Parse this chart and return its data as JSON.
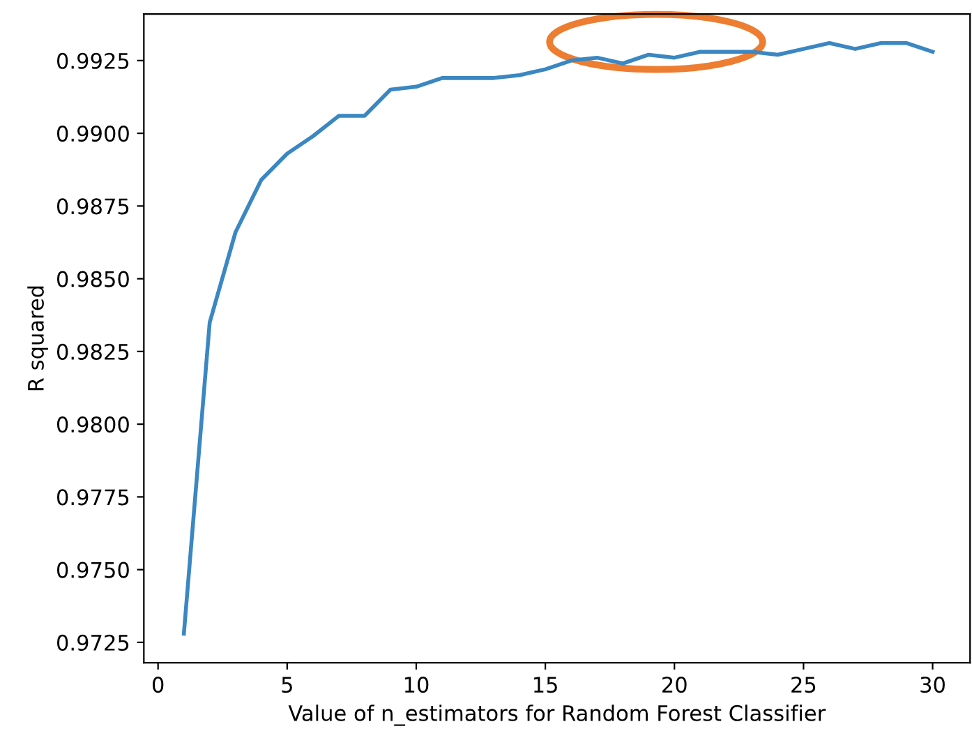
{
  "chart_data": {
    "type": "line",
    "xlabel": "Value of n_estimators for Random Forest Classifier",
    "ylabel": "R squared",
    "x": [
      1,
      2,
      3,
      4,
      5,
      6,
      7,
      8,
      9,
      10,
      11,
      12,
      13,
      14,
      15,
      16,
      17,
      18,
      19,
      20,
      21,
      22,
      23,
      24,
      25,
      26,
      27,
      28,
      29,
      30
    ],
    "series": [
      {
        "color": "#3a87c2",
        "values": [
          0.9728,
          0.9835,
          0.9866,
          0.9884,
          0.9893,
          0.9899,
          0.9906,
          0.9906,
          0.9915,
          0.9916,
          0.9919,
          0.9919,
          0.9919,
          0.992,
          0.9922,
          0.9925,
          0.9926,
          0.9924,
          0.9927,
          0.9926,
          0.9928,
          0.9928,
          0.9928,
          0.9927,
          0.9929,
          0.9931,
          0.9929,
          0.9931,
          0.9931,
          0.9928
        ]
      }
    ],
    "xlim": [
      -0.55,
      31.45
    ],
    "ylim": [
      0.9718,
      0.9941
    ],
    "xticks": [
      0,
      5,
      10,
      15,
      20,
      25,
      30
    ],
    "yticks": [
      {
        "value": 0.9725,
        "label": "0.9725"
      },
      {
        "value": 0.975,
        "label": "0.9750"
      },
      {
        "value": 0.9775,
        "label": "0.9775"
      },
      {
        "value": 0.98,
        "label": "0.9800"
      },
      {
        "value": 0.9825,
        "label": "0.9825"
      },
      {
        "value": 0.985,
        "label": "0.9850"
      },
      {
        "value": 0.9875,
        "label": "0.9875"
      },
      {
        "value": 0.99,
        "label": "0.9900"
      },
      {
        "value": 0.9925,
        "label": "0.9925"
      }
    ],
    "grid": false,
    "legend": false,
    "marker": "none",
    "line_style": "solid"
  }
}
